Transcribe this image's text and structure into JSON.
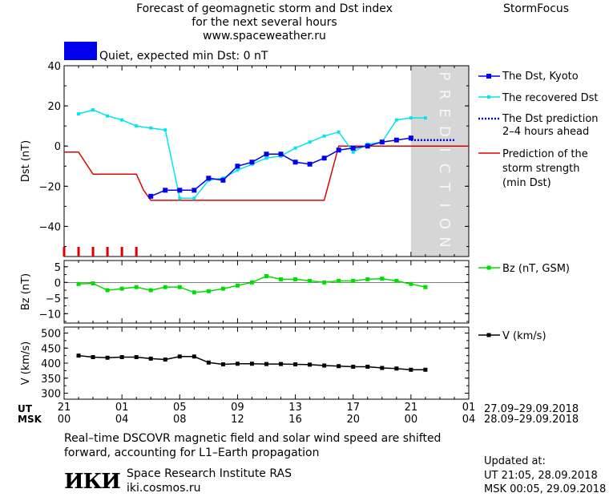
{
  "header": {
    "title_lines": [
      "Forecast of geomagnetic storm and Dst index",
      "for the next several hours",
      "www.spaceweather.ru"
    ],
    "brand": "StormFocus",
    "status_text": "Quiet, expected min Dst: 0 nT",
    "status_color": "#0000ee"
  },
  "legend": {
    "dst_kyoto": "The Dst, Kyoto",
    "dst_recovered": "The recovered Dst",
    "dst_prediction": [
      "The Dst prediction",
      "2–4 hours ahead"
    ],
    "storm_strength": [
      "Prediction of the",
      "storm strength",
      "(min Dst)"
    ],
    "bz": "Bz (nT, GSM)",
    "v": "V (km/s)"
  },
  "prediction_label": "PREDICTION",
  "time_axis": {
    "ut_label": "UT",
    "msk_label": "MSK",
    "ut_ticks": [
      "21",
      "01",
      "05",
      "09",
      "13",
      "17",
      "21",
      "01"
    ],
    "msk_ticks": [
      "00",
      "04",
      "08",
      "12",
      "16",
      "20",
      "00",
      "04"
    ],
    "ut_range": "27.09–29.09.2018",
    "msk_range": "28.09–29.09.2018"
  },
  "footer": {
    "note_lines": [
      "Real–time DSCOVR magnetic field and solar wind speed are shifted",
      "forward, accounting for L1–Earth propagation"
    ],
    "logo_text": "ИКИ",
    "institute": "Space Research Institute RAS",
    "site": "iki.cosmos.ru",
    "updated_label": "Updated at:",
    "updated_ut": "UT   21:05, 28.09.2018",
    "updated_msk": "MSK 00:05, 29.09.2018"
  },
  "colors": {
    "dst_kyoto": "#0000ee",
    "dst_recovered": "#00e5ee",
    "prediction": "#0000ee",
    "storm": "#dd0000",
    "bz": "#00dd00",
    "v": "#000000",
    "prediction_band": "#d6d6d6"
  },
  "chart_data": [
    {
      "type": "line",
      "ylabel": "Dst (nT)",
      "ylim": [
        -55,
        40
      ],
      "xlim": [
        0,
        28
      ],
      "y_ticks": [
        "40",
        "20",
        "0",
        "−20",
        "−40"
      ],
      "y_tick_values": [
        40,
        20,
        0,
        -20,
        -40
      ],
      "prediction_start_hour": 24,
      "storm_marker_hours": [
        0,
        1,
        2,
        3,
        4,
        5
      ],
      "series": [
        {
          "name": "The Dst, Kyoto",
          "x": [
            6,
            7,
            8,
            9,
            10,
            11,
            12,
            13,
            14,
            15,
            16,
            17,
            18,
            19,
            20,
            21,
            22,
            23,
            24
          ],
          "y": [
            -25,
            -22,
            -22,
            -22,
            -16,
            -17,
            -10,
            -8,
            -4,
            -4,
            -8,
            -9,
            -6,
            -2,
            -1,
            0,
            2,
            3,
            4
          ]
        },
        {
          "name": "The recovered Dst",
          "x": [
            1,
            2,
            3,
            4,
            5,
            6,
            7,
            8,
            9,
            10,
            11,
            12,
            13,
            14,
            15,
            16,
            17,
            18,
            19,
            20,
            21,
            22,
            23,
            24,
            25
          ],
          "y": [
            16,
            18,
            15,
            13,
            10,
            9,
            8,
            -26,
            -26,
            -17,
            -16,
            -12,
            -9,
            -6,
            -5,
            -1,
            2,
            5,
            7,
            -3,
            1,
            2,
            13,
            14,
            14
          ]
        },
        {
          "name": "The Dst prediction 2–4 hours ahead",
          "x": [
            24,
            25,
            26,
            27
          ],
          "y": [
            3,
            3,
            3,
            3
          ]
        },
        {
          "name": "Prediction of the storm strength (min Dst)",
          "x": [
            0,
            1,
            2,
            3,
            4,
            5,
            5.5,
            6,
            7,
            8,
            9,
            10,
            11,
            12,
            13,
            14,
            15,
            16,
            17,
            18,
            19,
            20,
            21,
            22,
            23,
            24,
            25,
            26,
            27,
            28
          ],
          "y": [
            -3,
            -3,
            -14,
            -14,
            -14,
            -14,
            -22,
            -27,
            -27,
            -27,
            -27,
            -27,
            -27,
            -27,
            -27,
            -27,
            -27,
            -27,
            -27,
            -27,
            0,
            0,
            0,
            0,
            0,
            0,
            0,
            0,
            0,
            0
          ]
        }
      ]
    },
    {
      "type": "line",
      "ylabel": "Bz (nT)",
      "ylim": [
        -13,
        7
      ],
      "xlim": [
        0,
        28
      ],
      "y_ticks": [
        "5",
        "0",
        "−5",
        "−10"
      ],
      "y_tick_values": [
        5,
        0,
        -5,
        -10
      ],
      "series": [
        {
          "name": "Bz (nT, GSM)",
          "x": [
            1,
            2,
            3,
            4,
            5,
            6,
            7,
            8,
            9,
            10,
            11,
            12,
            13,
            14,
            15,
            16,
            17,
            18,
            19,
            20,
            21,
            22,
            23,
            24,
            25
          ],
          "y": [
            -0.5,
            -0.3,
            -2.5,
            -2,
            -1.5,
            -2.5,
            -1.5,
            -1.5,
            -3.2,
            -2.8,
            -2,
            -1,
            0,
            2,
            1,
            1,
            0.5,
            0,
            0.5,
            0.5,
            1,
            1.2,
            0.5,
            -0.5,
            -1.5
          ]
        }
      ]
    },
    {
      "type": "line",
      "ylabel": "V (km/s)",
      "ylim": [
        280,
        520
      ],
      "xlim": [
        0,
        28
      ],
      "y_ticks": [
        "500",
        "450",
        "400",
        "350",
        "300"
      ],
      "y_tick_values": [
        500,
        450,
        400,
        350,
        300
      ],
      "series": [
        {
          "name": "V (km/s)",
          "x": [
            1,
            2,
            3,
            4,
            5,
            6,
            7,
            8,
            9,
            10,
            11,
            12,
            13,
            14,
            15,
            16,
            17,
            18,
            19,
            20,
            21,
            22,
            23,
            24,
            25
          ],
          "y": [
            425,
            420,
            418,
            420,
            420,
            415,
            412,
            422,
            422,
            402,
            396,
            398,
            398,
            397,
            397,
            396,
            395,
            392,
            390,
            388,
            388,
            384,
            382,
            378,
            378
          ]
        }
      ]
    }
  ]
}
